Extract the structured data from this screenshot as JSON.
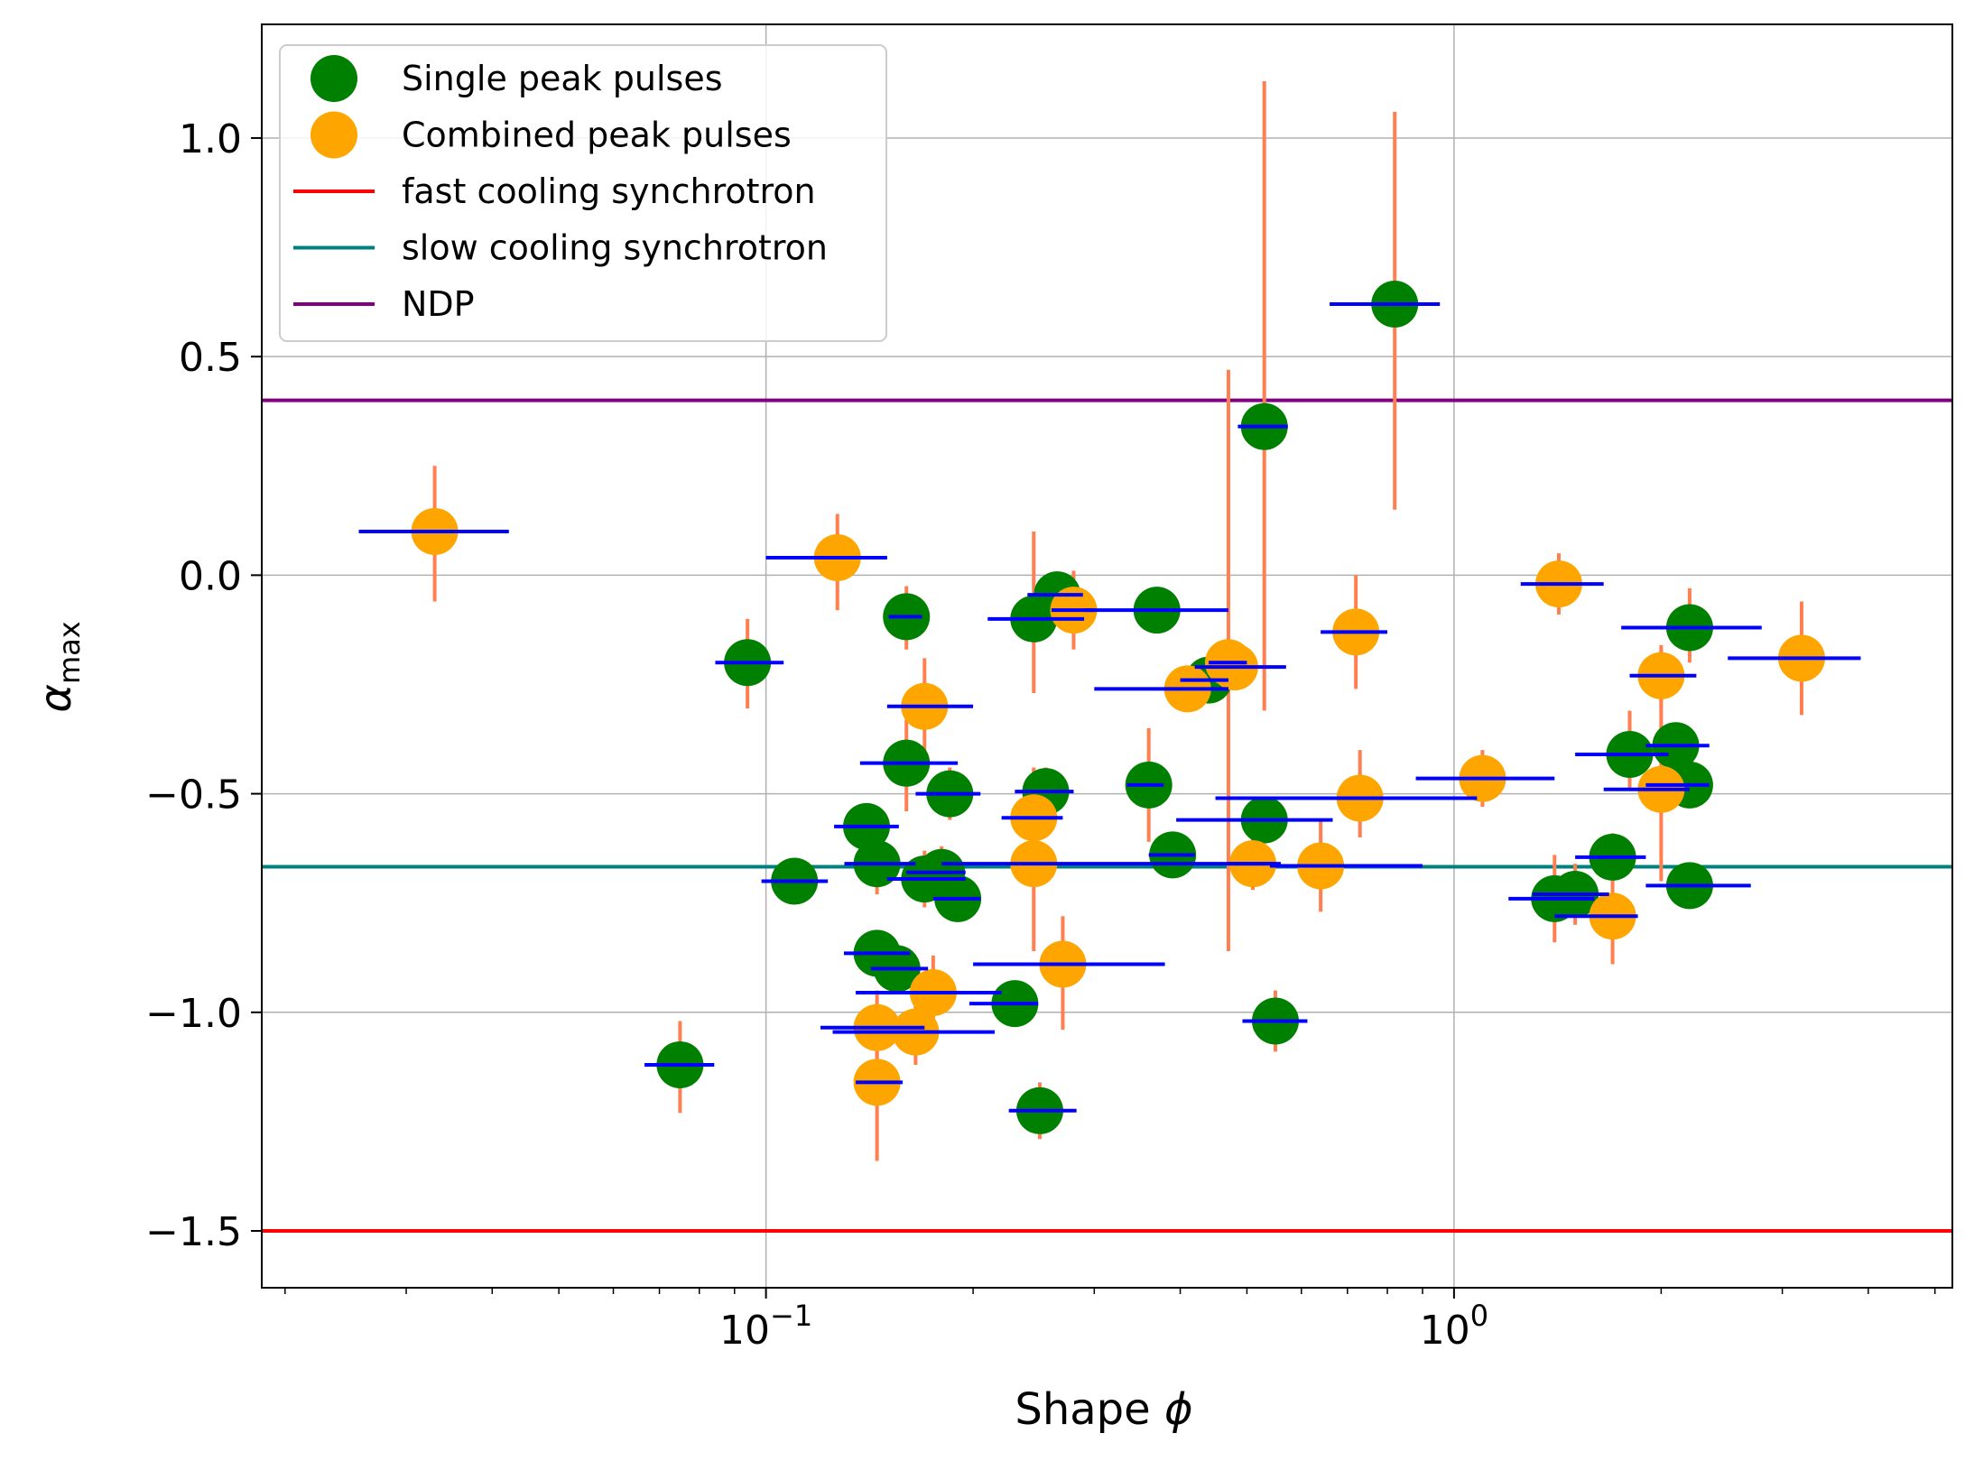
{
  "chart_data": {
    "type": "scatter",
    "xscale": "log",
    "xlim": [
      0.0185,
      5.3
    ],
    "ylim": [
      -1.63,
      1.26
    ],
    "xlabel": "Shape φ",
    "xlabel_text": "Shape ",
    "xlabel_symbol": "ϕ",
    "ylabel": "α_max",
    "ylabel_main": "α",
    "ylabel_sub": "max",
    "grid": true,
    "legend_position": "upper-left",
    "x_ticks": [
      {
        "value": 0.1,
        "base": "10",
        "exp": "−1"
      },
      {
        "value": 1,
        "base": "10",
        "exp": "0"
      }
    ],
    "y_ticks": [
      {
        "value": 1.0,
        "label": "1.0"
      },
      {
        "value": 0.5,
        "label": "0.5"
      },
      {
        "value": 0.0,
        "label": "0.0"
      },
      {
        "value": -0.5,
        "label": "−0.5"
      },
      {
        "value": -1.0,
        "label": "−1.0"
      },
      {
        "value": -1.5,
        "label": "−1.5"
      }
    ],
    "reference_lines": [
      {
        "name": "fast cooling synchrotron",
        "y": -1.5,
        "color": "#ff0000"
      },
      {
        "name": "slow cooling synchrotron",
        "y": -0.667,
        "color": "#008080"
      },
      {
        "name": "NDP",
        "y": 0.4,
        "color": "#800080"
      }
    ],
    "series": [
      {
        "name": "Single peak pulses",
        "color": "#008000",
        "points": [
          {
            "x": 0.075,
            "y": -1.12,
            "xlo": 0.0666,
            "xhi": 0.0841,
            "ylo": -1.23,
            "yhi": -1.02
          },
          {
            "x": 0.094,
            "y": -0.2,
            "xlo": 0.0844,
            "xhi": 0.1061,
            "ylo": -0.305,
            "yhi": -0.1
          },
          {
            "x": 0.11,
            "y": -0.7,
            "xlo": 0.0985,
            "xhi": 0.123,
            "ylo": -0.75,
            "yhi": -0.65
          },
          {
            "x": 0.14,
            "y": -0.575,
            "xlo": 0.1256,
            "xhi": 0.156,
            "ylo": -0.62,
            "yhi": -0.53
          },
          {
            "x": 0.145,
            "y": -0.865,
            "xlo": 0.1298,
            "xhi": 0.162,
            "ylo": -0.91,
            "yhi": -0.82
          },
          {
            "x": 0.145,
            "y": -0.66,
            "xlo": 0.13,
            "xhi": 0.165,
            "ylo": -0.73,
            "yhi": -0.6
          },
          {
            "x": 0.16,
            "y": -0.095,
            "xlo": 0.1508,
            "xhi": 0.1686,
            "ylo": -0.17,
            "yhi": -0.025
          },
          {
            "x": 0.16,
            "y": -0.43,
            "xlo": 0.137,
            "xhi": 0.19,
            "ylo": -0.54,
            "yhi": -0.33
          },
          {
            "x": 0.155,
            "y": -0.9,
            "xlo": 0.142,
            "xhi": 0.172,
            "ylo": -0.95,
            "yhi": -0.85
          },
          {
            "x": 0.17,
            "y": -0.695,
            "xlo": 0.15,
            "xhi": 0.195,
            "ylo": -0.76,
            "yhi": -0.63
          },
          {
            "x": 0.18,
            "y": -0.68,
            "xlo": 0.16,
            "xhi": 0.195,
            "ylo": -0.75,
            "yhi": -0.62
          },
          {
            "x": 0.185,
            "y": -0.5,
            "xlo": 0.165,
            "xhi": 0.205,
            "ylo": -0.56,
            "yhi": -0.44
          },
          {
            "x": 0.19,
            "y": -0.74,
            "xlo": 0.175,
            "xhi": 0.205,
            "ylo": -0.78,
            "yhi": -0.7
          },
          {
            "x": 0.23,
            "y": -0.98,
            "xlo": 0.1975,
            "xhi": 0.2486,
            "ylo": -1.02,
            "yhi": -0.94
          },
          {
            "x": 0.245,
            "y": -0.1,
            "xlo": 0.21,
            "xhi": 0.29,
            "ylo": -0.27,
            "yhi": 0.1
          },
          {
            "x": 0.25,
            "y": -1.225,
            "xlo": 0.2254,
            "xhi": 0.2827,
            "ylo": -1.29,
            "yhi": -1.16
          },
          {
            "x": 0.255,
            "y": -0.495,
            "xlo": 0.23,
            "xhi": 0.28,
            "ylo": -0.54,
            "yhi": -0.44
          },
          {
            "x": 0.265,
            "y": -0.045,
            "xlo": 0.2399,
            "xhi": 0.2888,
            "ylo": -0.09,
            "yhi": 0.0
          },
          {
            "x": 0.36,
            "y": -0.48,
            "xlo": 0.3347,
            "xhi": 0.3784,
            "ylo": -0.61,
            "yhi": -0.35
          },
          {
            "x": 0.37,
            "y": -0.08,
            "xlo": 0.29,
            "xhi": 0.47,
            "ylo": -0.11,
            "yhi": -0.05
          },
          {
            "x": 0.39,
            "y": -0.64,
            "xlo": 0.36,
            "xhi": 0.42,
            "ylo": -0.68,
            "yhi": -0.6
          },
          {
            "x": 0.44,
            "y": -0.24,
            "xlo": 0.4,
            "xhi": 0.47,
            "ylo": -0.28,
            "yhi": -0.2
          },
          {
            "x": 0.53,
            "y": 0.34,
            "xlo": 0.4851,
            "xhi": 0.5734,
            "ylo": -0.31,
            "yhi": 1.13
          },
          {
            "x": 0.53,
            "y": -0.56,
            "xlo": 0.3947,
            "xhi": 0.6663,
            "ylo": -0.61,
            "yhi": -0.51
          },
          {
            "x": 0.55,
            "y": -1.02,
            "xlo": 0.4926,
            "xhi": 0.6122,
            "ylo": -1.09,
            "yhi": -0.95
          },
          {
            "x": 0.82,
            "y": 0.62,
            "xlo": 0.6595,
            "xhi": 0.9538,
            "ylo": 0.15,
            "yhi": 1.06
          },
          {
            "x": 1.4,
            "y": -0.74,
            "xlo": 1.2,
            "xhi": 1.6,
            "ylo": -0.84,
            "yhi": -0.64
          },
          {
            "x": 1.5,
            "y": -0.73,
            "xlo": 1.3,
            "xhi": 1.68,
            "ylo": -0.8,
            "yhi": -0.66
          },
          {
            "x": 1.7,
            "y": -0.645,
            "xlo": 1.5,
            "xhi": 1.9,
            "ylo": -0.7,
            "yhi": -0.59
          },
          {
            "x": 1.8,
            "y": -0.41,
            "xlo": 1.5,
            "xhi": 2.05,
            "ylo": -0.49,
            "yhi": -0.31
          },
          {
            "x": 2.1,
            "y": -0.39,
            "xlo": 1.9,
            "xhi": 2.35,
            "ylo": -0.44,
            "yhi": -0.34
          },
          {
            "x": 2.2,
            "y": -0.12,
            "xlo": 1.75,
            "xhi": 2.8,
            "ylo": -0.2,
            "yhi": -0.03
          },
          {
            "x": 2.2,
            "y": -0.48,
            "xlo": 1.9,
            "xhi": 2.35,
            "ylo": -0.53,
            "yhi": -0.43
          },
          {
            "x": 2.2,
            "y": -0.71,
            "xlo": 1.9,
            "xhi": 2.7,
            "ylo": -0.76,
            "yhi": -0.66
          }
        ]
      },
      {
        "name": "Combined peak pulses",
        "color": "#ffa500",
        "points": [
          {
            "x": 0.033,
            "y": 0.1,
            "xlo": 0.0256,
            "xhi": 0.0423,
            "ylo": -0.06,
            "yhi": 0.25
          },
          {
            "x": 0.127,
            "y": 0.04,
            "xlo": 0.1,
            "xhi": 0.15,
            "ylo": -0.08,
            "yhi": 0.14
          },
          {
            "x": 0.145,
            "y": -1.035,
            "xlo": 0.12,
            "xhi": 0.17,
            "ylo": -1.12,
            "yhi": -0.95
          },
          {
            "x": 0.145,
            "y": -1.16,
            "xlo": 0.135,
            "xhi": 0.158,
            "ylo": -1.34,
            "yhi": -0.98
          },
          {
            "x": 0.165,
            "y": -1.045,
            "xlo": 0.125,
            "xhi": 0.215,
            "ylo": -1.12,
            "yhi": -0.97
          },
          {
            "x": 0.17,
            "y": -0.3,
            "xlo": 0.15,
            "xhi": 0.2,
            "ylo": -0.42,
            "yhi": -0.19
          },
          {
            "x": 0.175,
            "y": -0.955,
            "xlo": 0.135,
            "xhi": 0.22,
            "ylo": -1.04,
            "yhi": -0.87
          },
          {
            "x": 0.245,
            "y": -0.555,
            "xlo": 0.22,
            "xhi": 0.27,
            "ylo": -0.66,
            "yhi": -0.44
          },
          {
            "x": 0.245,
            "y": -0.66,
            "xlo": 0.18,
            "xhi": 0.55,
            "ylo": -0.86,
            "yhi": -0.46
          },
          {
            "x": 0.27,
            "y": -0.89,
            "xlo": 0.2,
            "xhi": 0.38,
            "ylo": -1.04,
            "yhi": -0.78
          },
          {
            "x": 0.28,
            "y": -0.08,
            "xlo": 0.26,
            "xhi": 0.3,
            "ylo": -0.17,
            "yhi": 0.01
          },
          {
            "x": 0.41,
            "y": -0.26,
            "xlo": 0.3,
            "xhi": 0.47,
            "ylo": -0.3,
            "yhi": -0.22
          },
          {
            "x": 0.48,
            "y": -0.21,
            "xlo": 0.42,
            "xhi": 0.57,
            "ylo": -0.25,
            "yhi": -0.17
          },
          {
            "x": 0.47,
            "y": -0.2,
            "xlo": 0.44,
            "xhi": 0.5,
            "ylo": -0.86,
            "yhi": 0.47
          },
          {
            "x": 0.51,
            "y": -0.66,
            "xlo": 0.47,
            "xhi": 0.56,
            "ylo": -0.72,
            "yhi": -0.6
          },
          {
            "x": 0.64,
            "y": -0.665,
            "xlo": 0.54,
            "xhi": 0.9,
            "ylo": -0.77,
            "yhi": -0.56
          },
          {
            "x": 0.72,
            "y": -0.13,
            "xlo": 0.64,
            "xhi": 0.8,
            "ylo": -0.26,
            "yhi": 0.0
          },
          {
            "x": 0.73,
            "y": -0.51,
            "xlo": 0.45,
            "xhi": 1.08,
            "ylo": -0.6,
            "yhi": -0.4
          },
          {
            "x": 1.1,
            "y": -0.465,
            "xlo": 0.88,
            "xhi": 1.4,
            "ylo": -0.53,
            "yhi": -0.4
          },
          {
            "x": 1.42,
            "y": -0.02,
            "xlo": 1.25,
            "xhi": 1.65,
            "ylo": -0.09,
            "yhi": 0.05
          },
          {
            "x": 1.7,
            "y": -0.78,
            "xlo": 1.4,
            "xhi": 1.85,
            "ylo": -0.89,
            "yhi": -0.66
          },
          {
            "x": 2.0,
            "y": -0.23,
            "xlo": 1.8,
            "xhi": 2.25,
            "ylo": -0.3,
            "yhi": -0.16
          },
          {
            "x": 2.0,
            "y": -0.49,
            "xlo": 1.65,
            "xhi": 2.2,
            "ylo": -0.7,
            "yhi": -0.28
          },
          {
            "x": 3.2,
            "y": -0.19,
            "xlo": 2.5,
            "xhi": 3.9,
            "ylo": -0.32,
            "yhi": -0.06
          }
        ]
      }
    ]
  },
  "legend": {
    "items": [
      {
        "label": "Single peak pulses",
        "kind": "marker",
        "color": "#008000"
      },
      {
        "label": "Combined peak pulses",
        "kind": "marker",
        "color": "#ffa500"
      },
      {
        "label": "fast cooling synchrotron",
        "kind": "line",
        "color": "#ff0000"
      },
      {
        "label": "slow cooling synchrotron",
        "kind": "line",
        "color": "#008080"
      },
      {
        "label": "NDP",
        "kind": "line",
        "color": "#800080"
      }
    ]
  },
  "colors": {
    "xerr": "#0000ff",
    "yerr": "#ff7f50",
    "grid": "#b0b0b0"
  }
}
